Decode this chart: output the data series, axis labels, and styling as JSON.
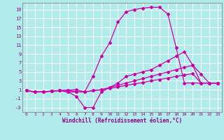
{
  "xlabel": "Windchill (Refroidissement éolien,°C)",
  "bg_color": "#b2ebeb",
  "grid_color": "#ffffff",
  "line_color": "#cc00aa",
  "xlim": [
    -0.5,
    23.5
  ],
  "ylim": [
    -4,
    20.5
  ],
  "xticks": [
    0,
    1,
    2,
    3,
    4,
    5,
    6,
    7,
    8,
    9,
    10,
    11,
    12,
    13,
    14,
    15,
    16,
    17,
    18,
    19,
    20,
    21,
    22,
    23
  ],
  "yticks": [
    -3,
    -1,
    1,
    3,
    5,
    7,
    9,
    11,
    13,
    15,
    17,
    19
  ],
  "line1_x": [
    0,
    1,
    2,
    3,
    4,
    5,
    6,
    7,
    8,
    9,
    10,
    11,
    12,
    13,
    14,
    15,
    16,
    17,
    18,
    19,
    20,
    21,
    22,
    23
  ],
  "line1_y": [
    0.8,
    0.5,
    0.5,
    0.7,
    0.8,
    0.9,
    1.0,
    0.5,
    4.0,
    8.5,
    11.5,
    16.2,
    18.5,
    19.0,
    19.3,
    19.5,
    19.5,
    18.0,
    10.5,
    2.5,
    2.5,
    2.5,
    2.5,
    2.5
  ],
  "line2_x": [
    0,
    1,
    2,
    3,
    4,
    5,
    6,
    7,
    8,
    9,
    10,
    11,
    12,
    13,
    14,
    15,
    16,
    17,
    18,
    19,
    20,
    21,
    22,
    23
  ],
  "line2_y": [
    0.8,
    0.5,
    0.5,
    0.7,
    0.8,
    0.5,
    -0.5,
    -3.0,
    -3.0,
    0.5,
    1.5,
    2.5,
    4.0,
    4.5,
    5.0,
    5.5,
    6.5,
    7.5,
    8.5,
    9.5,
    6.5,
    4.5,
    2.5,
    2.5
  ],
  "line3_x": [
    0,
    1,
    2,
    3,
    4,
    5,
    6,
    7,
    8,
    9,
    10,
    11,
    12,
    13,
    14,
    15,
    16,
    17,
    18,
    19,
    20,
    21,
    22,
    23
  ],
  "line3_y": [
    0.8,
    0.5,
    0.5,
    0.7,
    0.8,
    0.9,
    0.5,
    0.5,
    0.8,
    1.0,
    1.5,
    2.0,
    2.5,
    3.0,
    3.5,
    4.0,
    4.5,
    5.0,
    5.5,
    6.0,
    6.5,
    2.5,
    2.5,
    2.5
  ],
  "line4_x": [
    0,
    1,
    2,
    3,
    4,
    5,
    6,
    7,
    8,
    9,
    10,
    11,
    12,
    13,
    14,
    15,
    16,
    17,
    18,
    19,
    20,
    21,
    22,
    23
  ],
  "line4_y": [
    0.8,
    0.5,
    0.5,
    0.7,
    0.8,
    0.5,
    0.5,
    0.5,
    0.8,
    1.0,
    1.3,
    1.6,
    2.0,
    2.3,
    2.6,
    3.0,
    3.3,
    3.6,
    4.0,
    4.3,
    4.6,
    2.5,
    2.5,
    2.5
  ]
}
